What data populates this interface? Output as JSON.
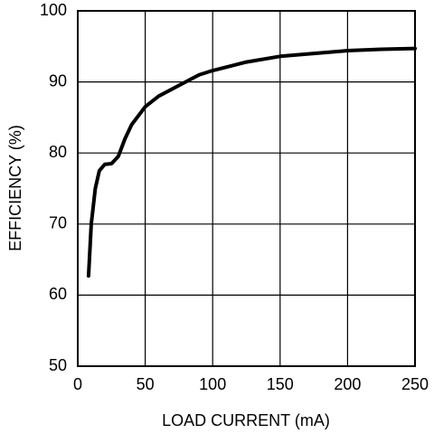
{
  "chart_data": {
    "type": "line",
    "xlabel": "LOAD CURRENT (mA)",
    "ylabel": "EFFICIENCY (%)",
    "x": [
      8,
      10,
      13,
      16,
      20,
      25,
      30,
      35,
      40,
      50,
      60,
      75,
      90,
      100,
      125,
      150,
      175,
      200,
      225,
      250
    ],
    "series": [
      {
        "color": "#000000",
        "values": [
          62.7,
          70,
          75,
          77.5,
          78.4,
          78.5,
          79.5,
          82,
          84,
          86.5,
          88,
          89.5,
          91,
          91.6,
          92.8,
          93.6,
          94,
          94.4,
          94.6,
          94.7
        ]
      }
    ],
    "xlim": [
      0,
      250
    ],
    "xticks": [
      0,
      50,
      100,
      150,
      200,
      250
    ],
    "ylim": [
      50,
      100
    ],
    "yticks": [
      50,
      60,
      70,
      80,
      90,
      100
    ],
    "grid": true
  }
}
